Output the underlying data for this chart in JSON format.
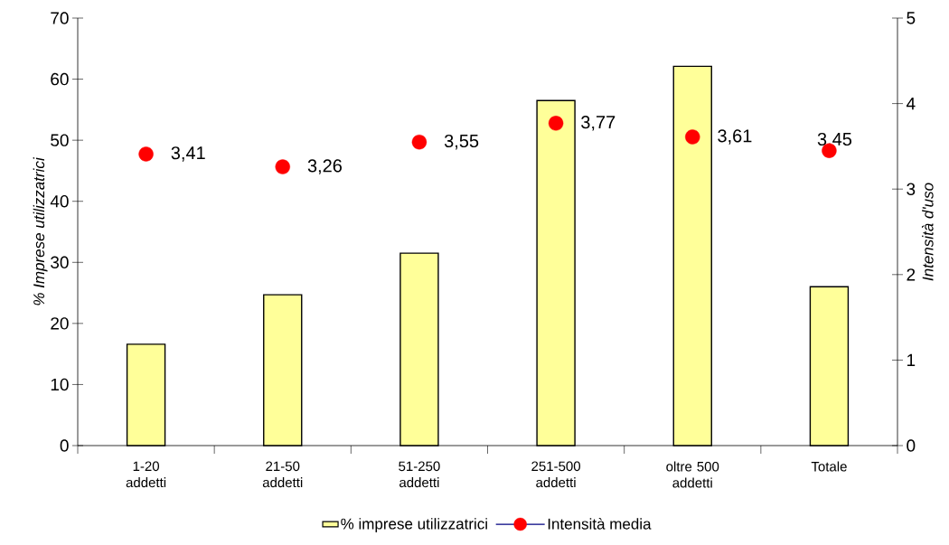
{
  "chart_data": {
    "type": "bar",
    "categories": [
      "1-20 addetti",
      "21-50 addetti",
      "51-250 addetti",
      "251-500 addetti",
      "oltre 500 addetti",
      "Totale"
    ],
    "ylabel": "% Imprese utilizzatrici",
    "y2label": "Intensità d'uso",
    "ylim": [
      0,
      70
    ],
    "yticks": [
      0,
      10,
      20,
      30,
      40,
      50,
      60,
      70
    ],
    "y2lim": [
      0,
      5
    ],
    "y2ticks": [
      0,
      1,
      2,
      3,
      4,
      5
    ],
    "legend": "bottom",
    "series": [
      {
        "name": "% imprese utilizzatrici",
        "color": "#ffff99",
        "values": [
          16.6,
          24.7,
          31.5,
          56.5,
          62.1,
          26.0
        ]
      },
      {
        "name": "Intensità media",
        "type": "scatter",
        "axis": "y2",
        "marker": "circle",
        "color": "#ff0000",
        "values": [
          3.41,
          3.26,
          3.55,
          3.77,
          3.61,
          3.45
        ],
        "value_labels": [
          "3,41",
          "3,26",
          "3,55",
          "3,77",
          "3,61",
          "3,45"
        ]
      }
    ]
  }
}
